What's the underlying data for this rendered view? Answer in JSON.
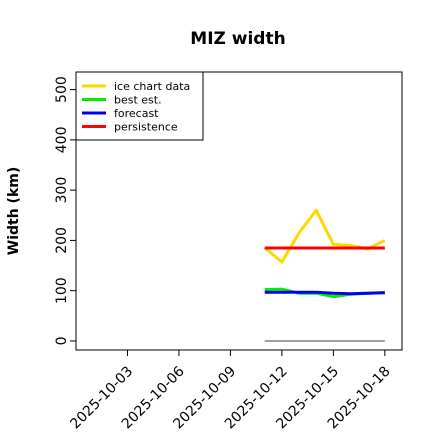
{
  "chart_data": {
    "type": "line",
    "title": "MIZ width",
    "xlabel": "",
    "ylabel": "Width (km)",
    "ylim": [
      -18,
      535
    ],
    "yticks": [
      0,
      100,
      200,
      300,
      400,
      500
    ],
    "xlim": [
      "2025-09-30",
      "2025-10-19"
    ],
    "xticks": [
      {
        "label": "2025-10-03",
        "date": "2025-10-03",
        "color": "#000000"
      },
      {
        "label": "2025-10-06",
        "date": "2025-10-06",
        "color": "#000000"
      },
      {
        "label": "2025-10-09",
        "date": "2025-10-09",
        "color": "#228B22"
      },
      {
        "label": "2025-10-12",
        "date": "2025-10-12",
        "color": "#000000"
      },
      {
        "label": "2025-10-15",
        "date": "2025-10-15",
        "color": "#000000"
      },
      {
        "label": "2025-10-18",
        "date": "2025-10-18",
        "color": "#000000"
      }
    ],
    "legend_position": "top-left",
    "series": [
      {
        "name": "ice chart data",
        "color": "#FFD700",
        "x": [
          "2025-10-11",
          "2025-10-12",
          "2025-10-13",
          "2025-10-14",
          "2025-10-15",
          "2025-10-16",
          "2025-10-17",
          "2025-10-18"
        ],
        "y": [
          185,
          157,
          215,
          260,
          192,
          190,
          183,
          200
        ]
      },
      {
        "name": "best est.",
        "color": "#00EE00",
        "x": [
          "2025-10-11",
          "2025-10-12",
          "2025-10-13",
          "2025-10-14",
          "2025-10-15",
          "2025-10-16",
          "2025-10-17",
          "2025-10-18"
        ],
        "y": [
          102,
          103,
          95,
          95,
          88,
          93,
          95,
          96
        ]
      },
      {
        "name": "forecast",
        "color": "#0000EE",
        "x": [
          "2025-10-11",
          "2025-10-12",
          "2025-10-13",
          "2025-10-14",
          "2025-10-15",
          "2025-10-16",
          "2025-10-17",
          "2025-10-18"
        ],
        "y": [
          97,
          97,
          97,
          97,
          95,
          94,
          95,
          96
        ]
      },
      {
        "name": "persistence",
        "color": "#FF0000",
        "x": [
          "2025-10-11",
          "2025-10-18"
        ],
        "y": [
          185,
          185
        ]
      }
    ],
    "reference_line": {
      "color": "#808080",
      "x": [
        "2025-10-11",
        "2025-10-18"
      ],
      "y": [
        0,
        0
      ]
    }
  }
}
